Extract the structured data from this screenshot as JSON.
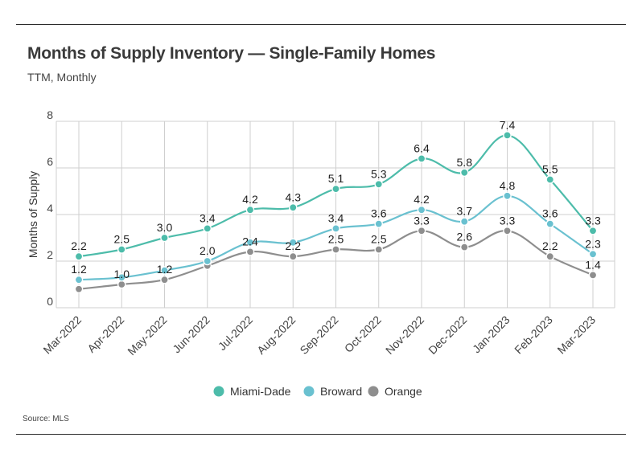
{
  "chart_data": {
    "type": "line",
    "title": "Months of Supply Inventory — Single-Family Homes",
    "subtitle": "TTM, Monthly",
    "xlabel": "",
    "ylabel": "Months of Supply",
    "ylim": [
      0,
      8
    ],
    "yticks": [
      0,
      2,
      4,
      6,
      8
    ],
    "grid": true,
    "legend_position": "bottom",
    "source": "Source:  MLS",
    "categories": [
      "Mar-2022",
      "Apr-2022",
      "May-2022",
      "Jun-2022",
      "Jul-2022",
      "Aug-2022",
      "Sep-2022",
      "Oct-2022",
      "Nov-2022",
      "Dec-2022",
      "Jan-2023",
      "Feb-2023",
      "Mar-2023"
    ],
    "series": [
      {
        "name": "Miami-Dade",
        "color": "#4dbcaa",
        "values": [
          2.2,
          2.5,
          3.0,
          3.4,
          4.2,
          4.3,
          5.1,
          5.3,
          6.4,
          5.8,
          7.4,
          5.5,
          3.3
        ],
        "labels": [
          "2.2",
          "2.5",
          "3.0",
          "3.4",
          "4.2",
          "4.3",
          "5.1",
          "5.3",
          "6.4",
          "5.8",
          "7.4",
          "5.5",
          "3.3"
        ]
      },
      {
        "name": "Broward",
        "color": "#6ac1d0",
        "values": [
          1.2,
          1.3,
          1.6,
          2.0,
          2.8,
          2.8,
          3.4,
          3.6,
          4.2,
          3.7,
          4.8,
          3.6,
          2.3
        ],
        "labels": [
          "1.2",
          "",
          "",
          "2.0",
          "",
          "",
          "3.4",
          "3.6",
          "4.2",
          "3.7",
          "4.8",
          "3.6",
          "2.3"
        ]
      },
      {
        "name": "Orange",
        "color": "#8e8e8e",
        "values": [
          0.8,
          1.0,
          1.2,
          1.8,
          2.4,
          2.2,
          2.5,
          2.5,
          3.3,
          2.6,
          3.3,
          2.2,
          1.4
        ],
        "labels": [
          "",
          "1.0",
          "1.2",
          "",
          "2.4",
          "2.2",
          "2.5",
          "2.5",
          "3.3",
          "2.6",
          "3.3",
          "2.2",
          "1.4"
        ]
      }
    ]
  }
}
